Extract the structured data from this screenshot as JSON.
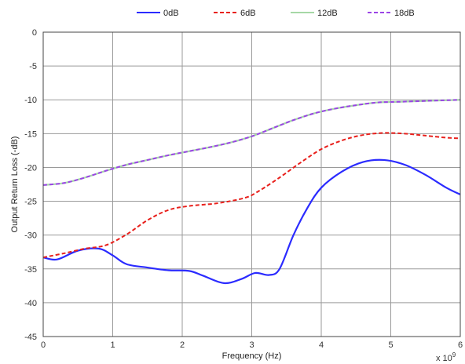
{
  "chart_data": {
    "type": "line",
    "xlabel": "Frequency (Hz)",
    "ylabel": "Output Return Loss (-dB)",
    "x_exponent_label": "x 10",
    "x_exponent_power": "9",
    "xlim": [
      0,
      6
    ],
    "ylim": [
      -45,
      0
    ],
    "x_ticks": [
      0,
      1,
      2,
      3,
      4,
      5,
      6
    ],
    "y_ticks": [
      0,
      -5,
      -10,
      -15,
      -20,
      -25,
      -30,
      -35,
      -40,
      -45
    ],
    "grid": true,
    "legend_position": "top",
    "series": [
      {
        "name": "0dB",
        "color": "#2b2bff",
        "style": "solid",
        "x": [
          0,
          0.2,
          0.5,
          0.8,
          1.0,
          1.2,
          1.5,
          1.8,
          2.1,
          2.3,
          2.6,
          2.85,
          3.05,
          3.25,
          3.4,
          3.6,
          3.8,
          4.0,
          4.3,
          4.6,
          4.9,
          5.2,
          5.5,
          5.8,
          6.0
        ],
        "y": [
          -33.3,
          -33.6,
          -32.3,
          -32.0,
          -33.0,
          -34.3,
          -34.8,
          -35.2,
          -35.3,
          -36.0,
          -37.1,
          -36.5,
          -35.6,
          -35.9,
          -35.0,
          -30.0,
          -26.0,
          -23.0,
          -20.6,
          -19.2,
          -18.9,
          -19.6,
          -21.1,
          -23.0,
          -24.0
        ]
      },
      {
        "name": "6dB",
        "color": "#e8201c",
        "style": "dashed",
        "x": [
          0,
          0.3,
          0.6,
          0.9,
          1.2,
          1.5,
          1.8,
          2.1,
          2.5,
          2.9,
          3.1,
          3.4,
          3.7,
          4.0,
          4.3,
          4.6,
          4.9,
          5.2,
          5.5,
          5.8,
          6.0
        ],
        "y": [
          -33.3,
          -32.7,
          -32.0,
          -31.5,
          -29.9,
          -27.8,
          -26.3,
          -25.7,
          -25.3,
          -24.5,
          -23.5,
          -21.5,
          -19.3,
          -17.3,
          -16.0,
          -15.2,
          -14.9,
          -15.0,
          -15.3,
          -15.6,
          -15.7
        ]
      },
      {
        "name": "12dB",
        "color": "#a6d8a6",
        "style": "solid",
        "x": [
          0,
          0.3,
          0.6,
          0.9,
          1.2,
          1.5,
          1.8,
          2.1,
          2.4,
          2.7,
          3.0,
          3.3,
          3.6,
          3.9,
          4.2,
          4.5,
          4.8,
          5.1,
          5.4,
          5.7,
          6.0
        ],
        "y": [
          -22.6,
          -22.3,
          -21.5,
          -20.5,
          -19.6,
          -18.9,
          -18.2,
          -17.6,
          -17.0,
          -16.3,
          -15.4,
          -14.2,
          -13.0,
          -12.0,
          -11.3,
          -10.8,
          -10.4,
          -10.3,
          -10.2,
          -10.1,
          -10.0
        ]
      },
      {
        "name": "18dB",
        "color": "#9b45e6",
        "style": "dashed",
        "x": [
          0,
          0.3,
          0.6,
          0.9,
          1.2,
          1.5,
          1.8,
          2.1,
          2.4,
          2.7,
          3.0,
          3.3,
          3.6,
          3.9,
          4.2,
          4.5,
          4.8,
          5.1,
          5.4,
          5.7,
          6.0
        ],
        "y": [
          -22.6,
          -22.3,
          -21.5,
          -20.5,
          -19.6,
          -18.9,
          -18.2,
          -17.6,
          -17.0,
          -16.3,
          -15.4,
          -14.2,
          -13.0,
          -12.0,
          -11.3,
          -10.8,
          -10.4,
          -10.3,
          -10.2,
          -10.1,
          -10.0
        ]
      }
    ]
  }
}
